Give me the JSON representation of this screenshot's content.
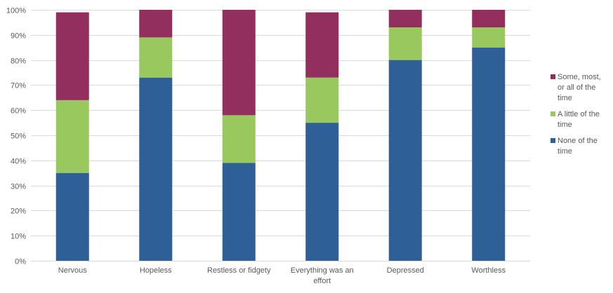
{
  "chart_data": {
    "type": "bar",
    "stacked": true,
    "categories": [
      [
        "Nervous"
      ],
      [
        "Hopeless"
      ],
      [
        "Restless or fidgety"
      ],
      [
        "Everything was an",
        "effort"
      ],
      [
        "Depressed"
      ],
      [
        "Worthless"
      ]
    ],
    "series": [
      {
        "name": [
          "None of the",
          "time"
        ],
        "color": "#2E5F96",
        "values": [
          35,
          73,
          39,
          55,
          80,
          85
        ]
      },
      {
        "name": [
          "A little of the",
          "time"
        ],
        "color": "#99C95E",
        "values": [
          29,
          16,
          19,
          18,
          13,
          8
        ]
      },
      {
        "name": [
          "Some, most,",
          "or all of the",
          "time"
        ],
        "color": "#932F5F",
        "values": [
          35,
          11,
          42,
          26,
          7,
          7
        ]
      }
    ],
    "ylim": [
      0,
      100
    ],
    "yticks": [
      "0%",
      "10%",
      "20%",
      "30%",
      "40%",
      "50%",
      "60%",
      "70%",
      "80%",
      "90%",
      "100%"
    ],
    "grid": true,
    "legend_position": "right",
    "legend_order": [
      2,
      1,
      0
    ],
    "title": "",
    "xlabel": "",
    "ylabel": ""
  }
}
